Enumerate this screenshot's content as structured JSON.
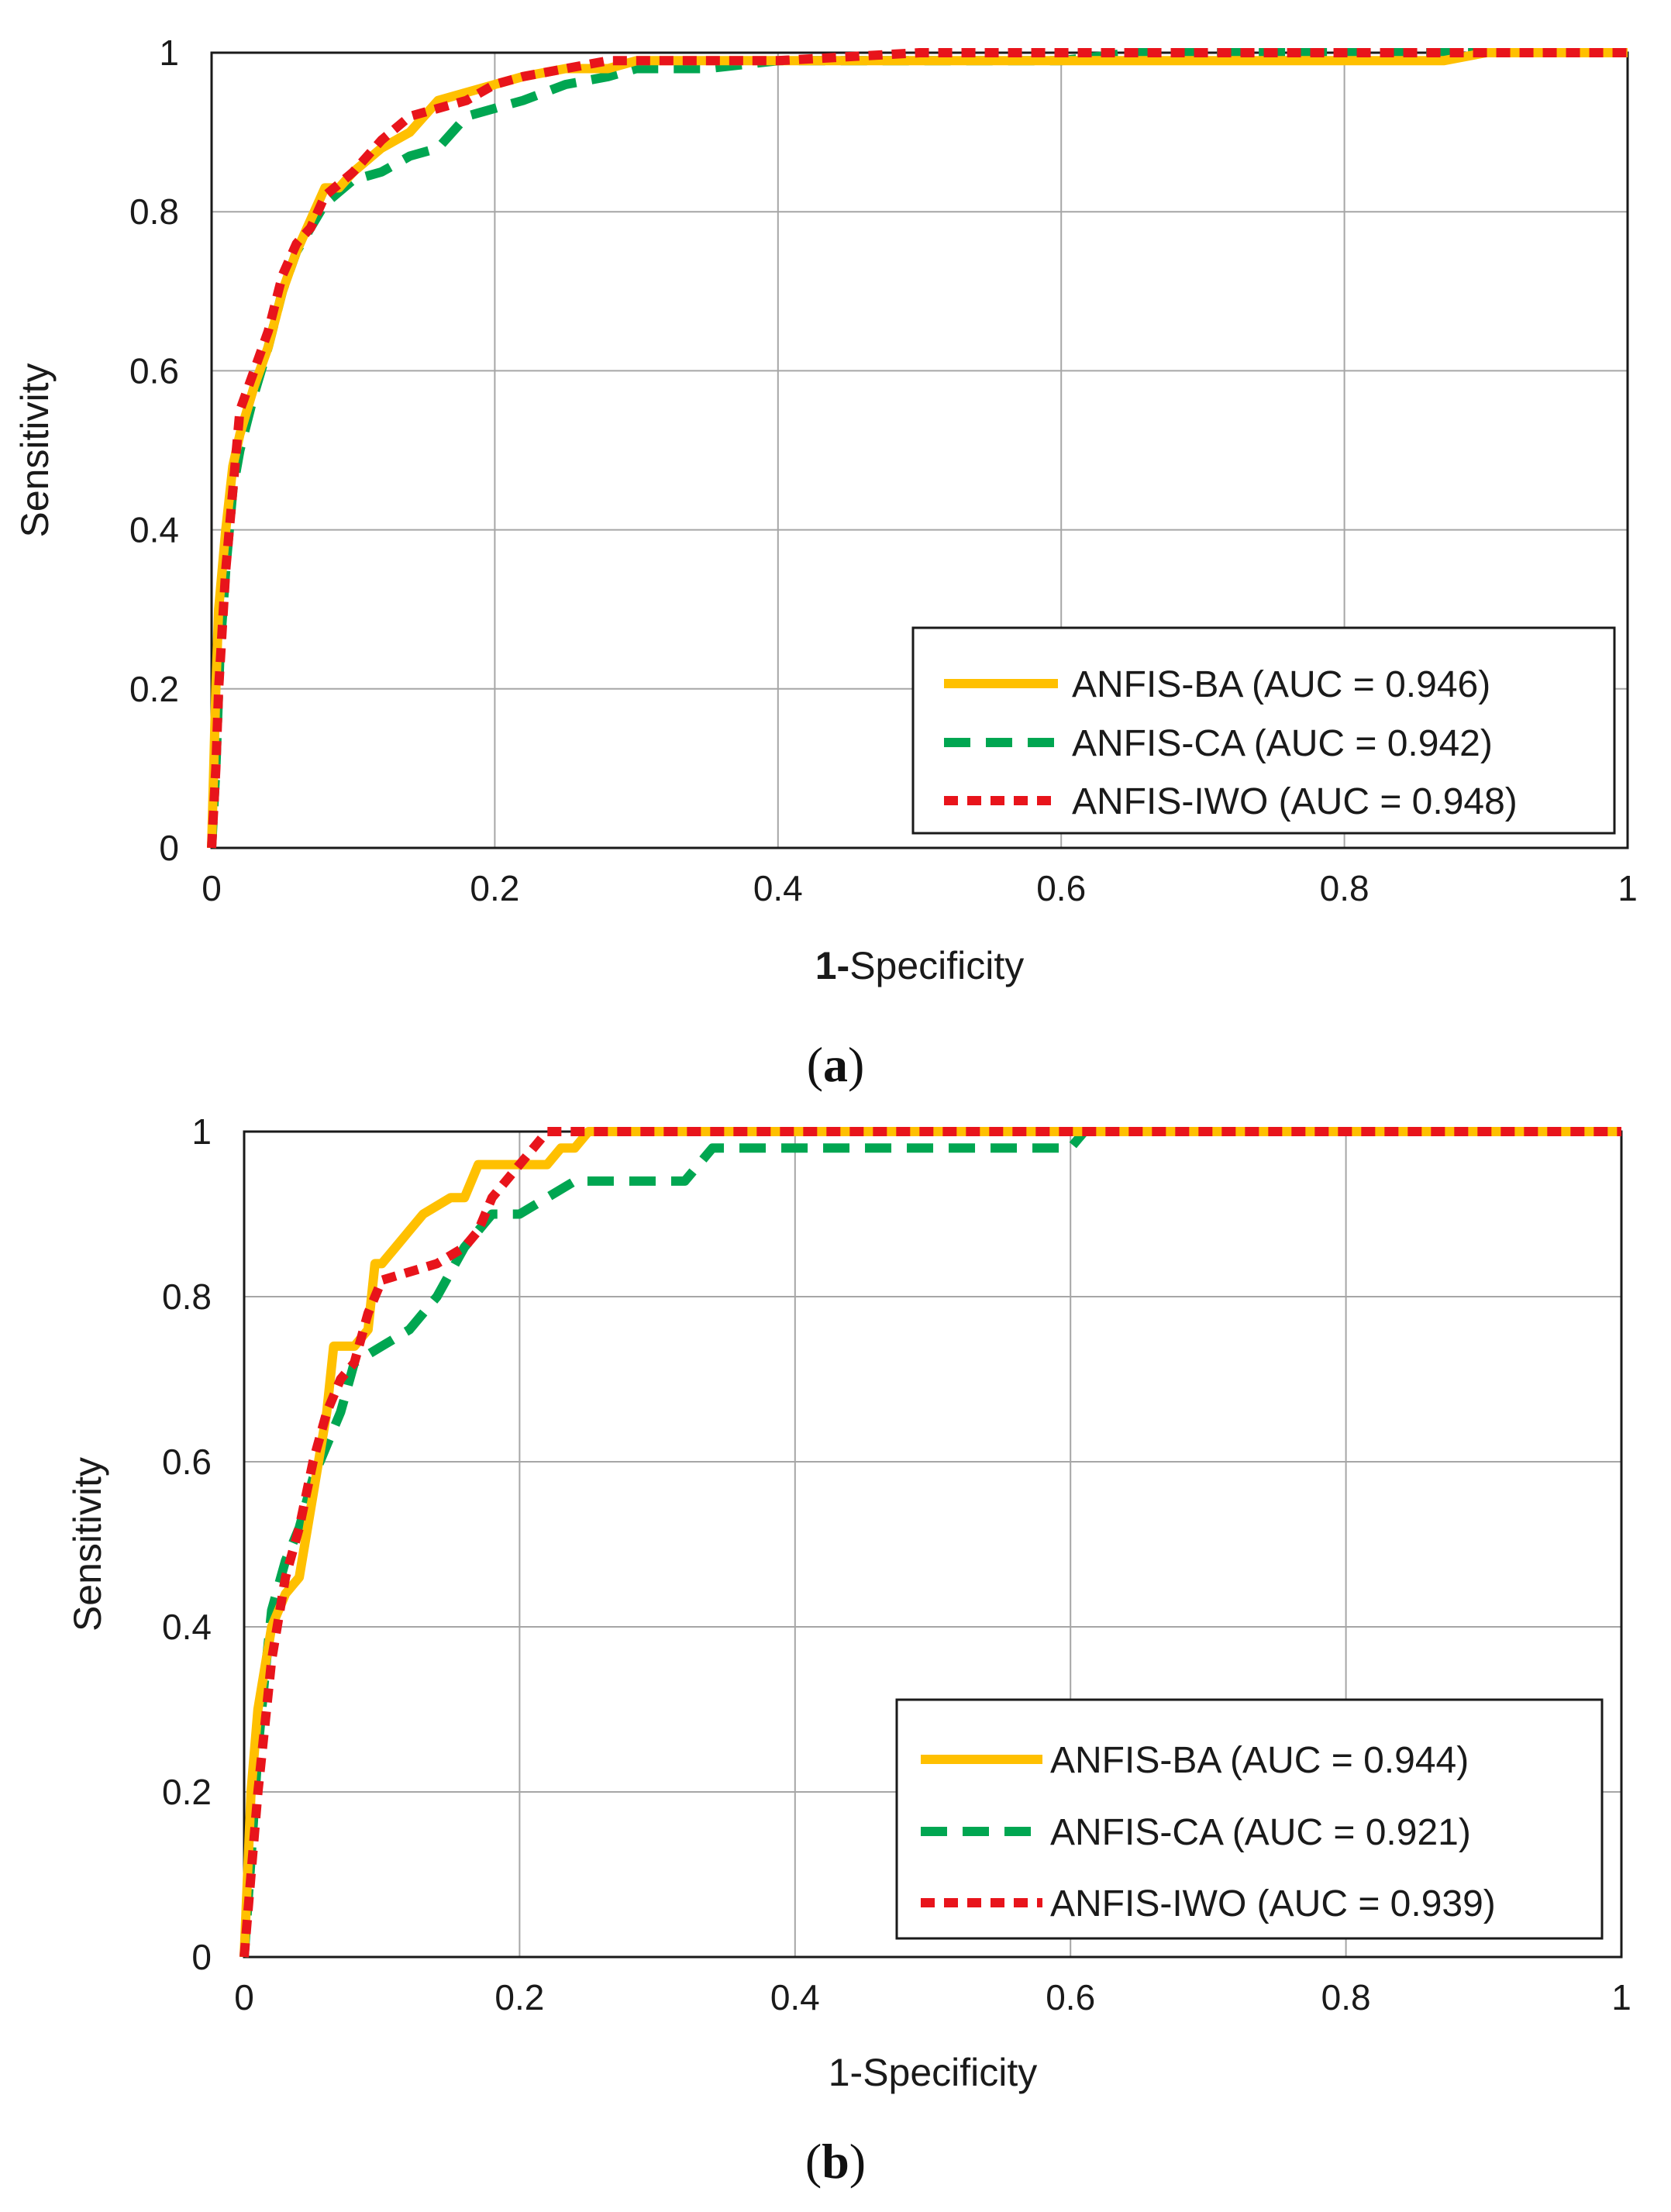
{
  "chart_data": [
    {
      "type": "line",
      "caption": "(a)",
      "title": "",
      "xlabel_prefix": "1-",
      "xlabel_rest": "Specificity",
      "ylabel": "Sensitivity",
      "xlim": [
        0,
        1
      ],
      "ylim": [
        0,
        1
      ],
      "grid": true,
      "legend_position": "bottom-right",
      "xticks": [
        "0",
        "0.2",
        "0.4",
        "0.6",
        "0.8",
        "1"
      ],
      "yticks": [
        "0",
        "0.2",
        "0.4",
        "0.6",
        "0.8",
        "1"
      ],
      "series": [
        {
          "name": "ANFIS-BA (AUC = 0.946)",
          "color": "#FFC000",
          "style": "solid",
          "x": [
            0,
            0.003,
            0.005,
            0.01,
            0.015,
            0.02,
            0.03,
            0.04,
            0.05,
            0.06,
            0.07,
            0.08,
            0.09,
            0.1,
            0.12,
            0.14,
            0.16,
            0.18,
            0.2,
            0.22,
            0.25,
            0.28,
            0.3,
            0.35,
            0.4,
            0.5,
            0.6,
            0.7,
            0.8,
            0.87,
            0.9,
            1
          ],
          "y": [
            0,
            0.2,
            0.3,
            0.4,
            0.48,
            0.52,
            0.58,
            0.63,
            0.7,
            0.75,
            0.79,
            0.83,
            0.83,
            0.85,
            0.88,
            0.9,
            0.94,
            0.95,
            0.96,
            0.97,
            0.98,
            0.98,
            0.99,
            0.99,
            0.99,
            0.99,
            0.99,
            0.99,
            0.99,
            0.99,
            1,
            1
          ]
        },
        {
          "name": "ANFIS-CA (AUC = 0.942)",
          "color": "#00A651",
          "style": "dashed",
          "x": [
            0,
            0.003,
            0.006,
            0.01,
            0.015,
            0.02,
            0.03,
            0.04,
            0.05,
            0.06,
            0.08,
            0.1,
            0.12,
            0.14,
            0.16,
            0.18,
            0.2,
            0.22,
            0.25,
            0.28,
            0.3,
            0.35,
            0.4,
            0.45,
            0.5,
            0.6,
            0.65,
            0.7,
            0.8,
            0.9,
            1
          ],
          "y": [
            0,
            0.1,
            0.25,
            0.35,
            0.45,
            0.5,
            0.57,
            0.63,
            0.7,
            0.75,
            0.81,
            0.84,
            0.85,
            0.87,
            0.88,
            0.92,
            0.93,
            0.94,
            0.96,
            0.97,
            0.98,
            0.98,
            0.99,
            0.99,
            0.99,
            0.99,
            1,
            1,
            1,
            1,
            1
          ]
        },
        {
          "name": "ANFIS-IWO (AUC = 0.948)",
          "color": "#E8141B",
          "style": "dotted",
          "x": [
            0,
            0.003,
            0.005,
            0.01,
            0.015,
            0.02,
            0.03,
            0.04,
            0.05,
            0.06,
            0.07,
            0.08,
            0.1,
            0.12,
            0.14,
            0.16,
            0.18,
            0.2,
            0.22,
            0.25,
            0.28,
            0.3,
            0.4,
            0.5,
            0.6,
            0.7,
            0.8,
            0.9,
            1
          ],
          "y": [
            0,
            0.1,
            0.2,
            0.35,
            0.45,
            0.55,
            0.6,
            0.65,
            0.72,
            0.76,
            0.78,
            0.82,
            0.85,
            0.89,
            0.92,
            0.93,
            0.94,
            0.96,
            0.97,
            0.98,
            0.99,
            0.99,
            0.99,
            1,
            1,
            1,
            1,
            1,
            1
          ]
        }
      ]
    },
    {
      "type": "line",
      "caption": "(b)",
      "title": "",
      "xlabel_prefix": "",
      "xlabel_rest": "1-Specificity",
      "ylabel": "Sensitivity",
      "xlim": [
        0,
        1
      ],
      "ylim": [
        0,
        1
      ],
      "grid": true,
      "legend_position": "bottom-right",
      "xticks": [
        "0",
        "0.2",
        "0.4",
        "0.6",
        "0.8",
        "1"
      ],
      "yticks": [
        "0",
        "0.2",
        "0.4",
        "0.6",
        "0.8",
        "1"
      ],
      "series": [
        {
          "name": "ANFIS-BA (AUC = 0.944)",
          "color": "#FFC000",
          "style": "solid",
          "x": [
            0,
            0.005,
            0.01,
            0.02,
            0.03,
            0.04,
            0.05,
            0.06,
            0.065,
            0.07,
            0.08,
            0.09,
            0.095,
            0.1,
            0.11,
            0.12,
            0.13,
            0.14,
            0.15,
            0.16,
            0.17,
            0.18,
            0.2,
            0.22,
            0.23,
            0.24,
            0.25,
            0.26,
            0.3,
            0.4,
            0.5,
            0.6,
            0.8,
            1
          ],
          "y": [
            0,
            0.2,
            0.3,
            0.4,
            0.44,
            0.46,
            0.56,
            0.66,
            0.74,
            0.74,
            0.74,
            0.76,
            0.84,
            0.84,
            0.86,
            0.88,
            0.9,
            0.91,
            0.92,
            0.92,
            0.96,
            0.96,
            0.96,
            0.96,
            0.98,
            0.98,
            1,
            1,
            1,
            1,
            1,
            1,
            1,
            1
          ]
        },
        {
          "name": "ANFIS-CA (AUC = 0.921)",
          "color": "#00A651",
          "style": "dashed",
          "x": [
            0,
            0.005,
            0.01,
            0.015,
            0.02,
            0.03,
            0.04,
            0.05,
            0.06,
            0.07,
            0.08,
            0.1,
            0.12,
            0.14,
            0.16,
            0.18,
            0.2,
            0.22,
            0.24,
            0.26,
            0.3,
            0.32,
            0.33,
            0.34,
            0.4,
            0.5,
            0.6,
            0.61,
            0.7,
            0.8,
            0.9,
            1
          ],
          "y": [
            0,
            0.12,
            0.25,
            0.34,
            0.42,
            0.48,
            0.52,
            0.58,
            0.62,
            0.66,
            0.72,
            0.74,
            0.76,
            0.8,
            0.86,
            0.9,
            0.9,
            0.92,
            0.94,
            0.94,
            0.94,
            0.94,
            0.96,
            0.98,
            0.98,
            0.98,
            0.98,
            1,
            1,
            1,
            1,
            1
          ]
        },
        {
          "name": "ANFIS-IWO (AUC = 0.939)",
          "color": "#E8141B",
          "style": "dotted",
          "x": [
            0,
            0.005,
            0.01,
            0.02,
            0.03,
            0.04,
            0.05,
            0.06,
            0.07,
            0.08,
            0.09,
            0.1,
            0.12,
            0.14,
            0.16,
            0.17,
            0.18,
            0.2,
            0.21,
            0.22,
            0.3,
            0.4,
            0.5,
            0.6,
            0.8,
            1
          ],
          "y": [
            0,
            0.1,
            0.2,
            0.36,
            0.46,
            0.52,
            0.6,
            0.66,
            0.7,
            0.72,
            0.78,
            0.82,
            0.83,
            0.84,
            0.86,
            0.88,
            0.92,
            0.96,
            0.98,
            1,
            1,
            1,
            1,
            1,
            1,
            1
          ]
        }
      ]
    }
  ]
}
